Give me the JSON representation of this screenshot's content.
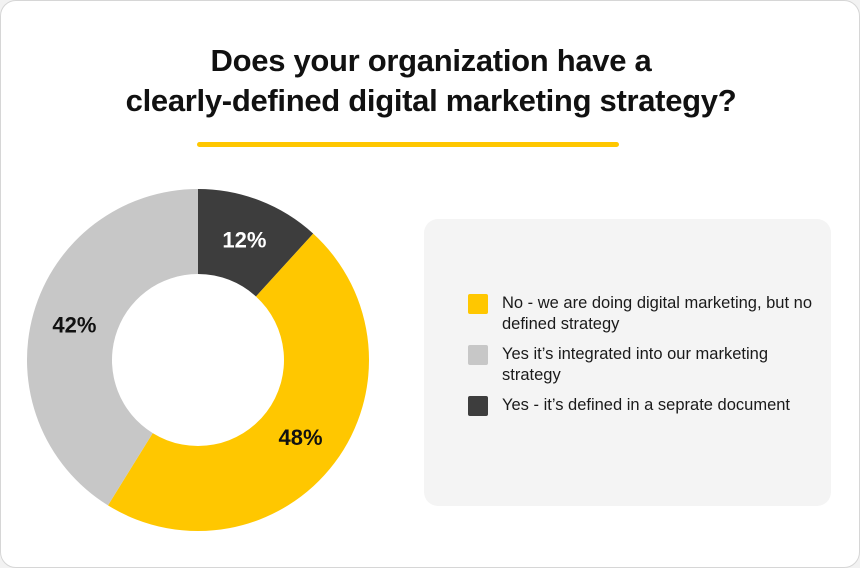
{
  "title": {
    "line1": "Does your organization have a",
    "line2": "clearly-defined digital marketing strategy?"
  },
  "colors": {
    "accent": "#ffc700",
    "no_strategy": "#ffc700",
    "integrated": "#c7c7c7",
    "separate_document": "#3d3d3d"
  },
  "chart_data": {
    "type": "pie",
    "variant": "donut",
    "title": "Does your organization have a clearly-defined digital marketing strategy?",
    "unit": "%",
    "slices": [
      {
        "label": "Yes - it's defined in a seprate document",
        "value": 12,
        "display": "12%",
        "color": "#3d3d3d",
        "label_color": "#ffffff"
      },
      {
        "label": "No - we are doing digital marketing, but no defined strategy",
        "value": 48,
        "display": "48%",
        "color": "#ffc700",
        "label_color": "#111111"
      },
      {
        "label": "Yes it's integrated into our marketing strategy",
        "value": 42,
        "display": "42%",
        "color": "#c7c7c7",
        "label_color": "#111111"
      }
    ],
    "start_angle_deg": 0,
    "direction": "clockwise"
  },
  "legend": {
    "items": [
      {
        "label": "No - we are doing digital marketing, but no defined strategy",
        "color": "#ffc700"
      },
      {
        "label": "Yes it’s integrated into our marketing strategy",
        "color": "#c7c7c7"
      },
      {
        "label": "Yes - it’s defined in a seprate document",
        "color": "#3d3d3d"
      }
    ]
  }
}
